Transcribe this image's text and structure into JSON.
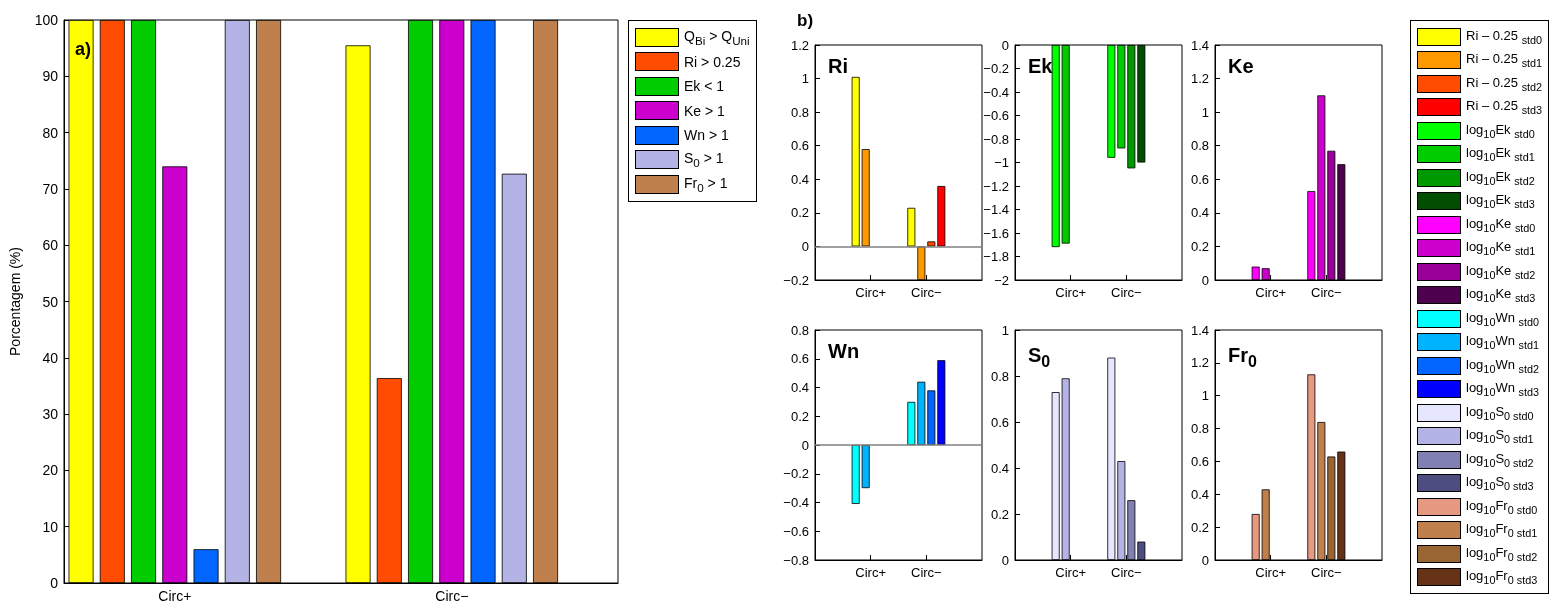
{
  "chart_data": [
    {
      "type": "bar",
      "ylabel": "Porcentagem (%)",
      "annotations": [
        "a)"
      ],
      "categories": [
        "Circ+",
        "Circ−"
      ],
      "ylim": [
        0,
        100
      ],
      "yticks": [
        0,
        10,
        20,
        30,
        40,
        50,
        60,
        70,
        80,
        90,
        100
      ],
      "legend": "top right",
      "series": [
        {
          "name": "Q$_{Bi}$ > Q$_{Uni}$",
          "color": "#ffff00",
          "values": [
            100,
            95.5
          ]
        },
        {
          "name": "Ri > 0.25",
          "color": "#ff4c00",
          "values": [
            100,
            36.4
          ]
        },
        {
          "name": "Ek < 1",
          "color": "#00cc00",
          "values": [
            100,
            100
          ]
        },
        {
          "name": "Ke > 1",
          "color": "#cc00cc",
          "values": [
            74,
            100
          ]
        },
        {
          "name": "Wn > 1",
          "color": "#0066ff",
          "values": [
            6,
            100
          ]
        },
        {
          "name": "S$_{0}$ > 1",
          "color": "#b3b3e6",
          "values": [
            100,
            72.7
          ]
        },
        {
          "name": "Fr$_{0}$ > 1",
          "color": "#c0804d",
          "values": [
            100,
            100
          ]
        }
      ]
    },
    {
      "type": "bar",
      "title": "Ri",
      "annotations": [
        "b)"
      ],
      "categories": [
        "Circ+",
        "Circ−"
      ],
      "ylim": [
        -0.2,
        1.2
      ],
      "yticks": [
        -0.2,
        0,
        0.2,
        0.4,
        0.6,
        0.8,
        1,
        1.2
      ],
      "legend": "right",
      "ref_lines": [
        {
          "axis": "y",
          "value": 0,
          "color": "#808080"
        }
      ],
      "series": [
        {
          "name": "Ri – 0.25 $_{std0}$",
          "color": "#ffff00",
          "values": [
            1.01,
            0.23
          ]
        },
        {
          "name": "Ri – 0.25 $_{std1}$",
          "color": "#ff9900",
          "values": [
            0.58,
            -0.2
          ]
        },
        {
          "name": "Ri – 0.25 $_{std2}$",
          "color": "#ff4c00",
          "values": [
            null,
            0.03
          ]
        },
        {
          "name": "Ri – 0.25 $_{std3}$",
          "color": "#ff0000",
          "values": [
            null,
            0.36
          ]
        }
      ]
    },
    {
      "type": "bar",
      "title": "Ek",
      "categories": [
        "Circ+",
        "Circ−"
      ],
      "ylim": [
        -2,
        0
      ],
      "yticks": [
        -2,
        -1.8,
        -1.6,
        -1.4,
        -1.2,
        -1,
        -0.8,
        -0.6,
        -0.4,
        -0.2,
        0
      ],
      "legend": "right",
      "series": [
        {
          "name": "log$_{10}$Ek $_{std0}$",
          "color": "#00ff00",
          "values": [
            -1.72,
            -0.96
          ]
        },
        {
          "name": "log$_{10}$Ek $_{std1}$",
          "color": "#00cc00",
          "values": [
            -1.69,
            -0.88
          ]
        },
        {
          "name": "log$_{10}$Ek $_{std2}$",
          "color": "#009900",
          "values": [
            null,
            -1.05
          ]
        },
        {
          "name": "log$_{10}$Ek $_{std3}$",
          "color": "#004d00",
          "values": [
            null,
            -1.0
          ]
        }
      ]
    },
    {
      "type": "bar",
      "title": "Ke",
      "categories": [
        "Circ+",
        "Circ−"
      ],
      "ylim": [
        0,
        1.4
      ],
      "yticks": [
        0,
        0.2,
        0.4,
        0.6,
        0.8,
        1,
        1.2,
        1.4
      ],
      "legend": "right",
      "series": [
        {
          "name": "log$_{10}$Ke $_{std0}$",
          "color": "#ff00ff",
          "values": [
            0.08,
            0.53
          ]
        },
        {
          "name": "log$_{10}$Ke $_{std1}$",
          "color": "#cc00cc",
          "values": [
            0.07,
            1.1
          ]
        },
        {
          "name": "log$_{10}$Ke $_{std2}$",
          "color": "#990099",
          "values": [
            null,
            0.77
          ]
        },
        {
          "name": "log$_{10}$Ke $_{std3}$",
          "color": "#4d004d",
          "values": [
            null,
            0.69
          ]
        }
      ]
    },
    {
      "type": "bar",
      "title": "Wn",
      "categories": [
        "Circ+",
        "Circ−"
      ],
      "ylim": [
        -0.8,
        0.8
      ],
      "yticks": [
        -0.8,
        -0.6,
        -0.4,
        -0.2,
        0,
        0.2,
        0.4,
        0.6,
        0.8
      ],
      "legend": "right",
      "ref_lines": [
        {
          "axis": "y",
          "value": 0,
          "color": "#808080"
        }
      ],
      "series": [
        {
          "name": "log$_{10}$Wn $_{std0}$",
          "color": "#00ffff",
          "values": [
            -0.41,
            0.3
          ]
        },
        {
          "name": "log$_{10}$Wn $_{std1}$",
          "color": "#00b3ff",
          "values": [
            -0.3,
            0.44
          ]
        },
        {
          "name": "log$_{10}$Wn $_{std2}$",
          "color": "#0066ff",
          "values": [
            null,
            0.38
          ]
        },
        {
          "name": "log$_{10}$Wn $_{std3}$",
          "color": "#0000ff",
          "values": [
            null,
            0.59
          ]
        }
      ]
    },
    {
      "type": "bar",
      "title": "S$_{0}$",
      "categories": [
        "Circ+",
        "Circ−"
      ],
      "ylim": [
        0,
        1
      ],
      "yticks": [
        0,
        0.2,
        0.4,
        0.6,
        0.8,
        1
      ],
      "legend": "right",
      "series": [
        {
          "name": "log$_{10}$S$_{0 std0}$",
          "color": "#e6e6ff",
          "values": [
            0.73,
            0.88
          ]
        },
        {
          "name": "log$_{10}$S$_{0 std1}$",
          "color": "#b3b3e6",
          "values": [
            0.79,
            0.43
          ]
        },
        {
          "name": "log$_{10}$S$_{0 std2}$",
          "color": "#8080b3",
          "values": [
            null,
            0.26
          ]
        },
        {
          "name": "log$_{10}$S$_{0 std3}$",
          "color": "#4d4d80",
          "values": [
            null,
            0.08
          ]
        }
      ]
    },
    {
      "type": "bar",
      "title": "Fr$_{0}$",
      "categories": [
        "Circ+",
        "Circ−"
      ],
      "ylim": [
        0,
        1.4
      ],
      "yticks": [
        0,
        0.2,
        0.4,
        0.6,
        0.8,
        1,
        1.2,
        1.4
      ],
      "legend": "right",
      "series": [
        {
          "name": "log$_{10}$Fr$_{0 std0}$",
          "color": "#e69980",
          "values": [
            0.28,
            1.13
          ]
        },
        {
          "name": "log$_{10}$Fr$_{0 std1}$",
          "color": "#c0804d",
          "values": [
            0.43,
            0.84
          ]
        },
        {
          "name": "log$_{10}$Fr$_{0 std2}$",
          "color": "#996633",
          "values": [
            null,
            0.63
          ]
        },
        {
          "name": "log$_{10}$Fr$_{0 std3}$",
          "color": "#663319",
          "values": [
            null,
            0.66
          ]
        }
      ]
    }
  ]
}
